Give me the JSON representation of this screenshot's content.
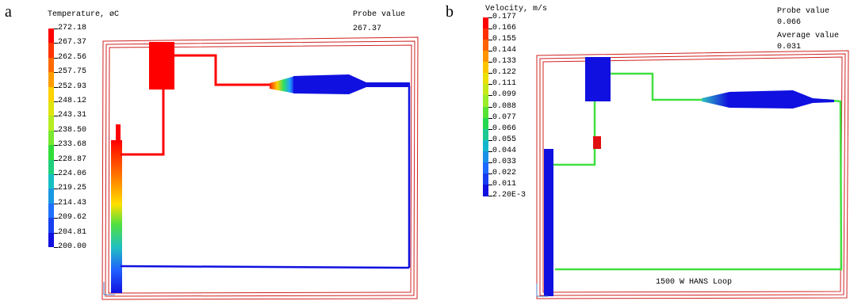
{
  "panel_a": {
    "letter": "a",
    "legend_title": "Temperature, øC",
    "ticks": [
      "272.18",
      "267.37",
      "262.56",
      "257.75",
      "252.93",
      "248.12",
      "243.31",
      "238.50",
      "233.68",
      "228.87",
      "224.06",
      "219.25",
      "214.43",
      "209.62",
      "204.81",
      "200.00"
    ],
    "probe_label": "Probe value",
    "probe_value": "267.37"
  },
  "panel_b": {
    "letter": "b",
    "legend_title": "Velocity, m/s",
    "ticks": [
      "0.177",
      "0.166",
      "0.155",
      "0.144",
      "0.133",
      "0.122",
      "0.111",
      "0.099",
      "0.088",
      "0.077",
      "0.066",
      "0.055",
      "0.044",
      "0.033",
      "0.022",
      "0.011",
      "2.20E-3"
    ],
    "probe_label": "Probe value",
    "probe_value": "0.066",
    "average_label": "Average value",
    "average_value": "0.031",
    "loop_label": "1500 W HANS Loop"
  },
  "colors": {
    "hot": "#ff0000",
    "cold": "#1010e0",
    "mid": "#40e040",
    "frame": "#d02020"
  }
}
